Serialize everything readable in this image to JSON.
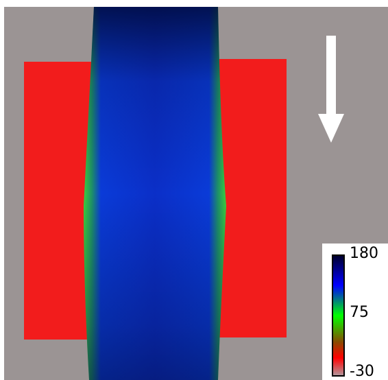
{
  "colorbar": {
    "ticks": [
      180,
      75,
      -30
    ]
  }
}
